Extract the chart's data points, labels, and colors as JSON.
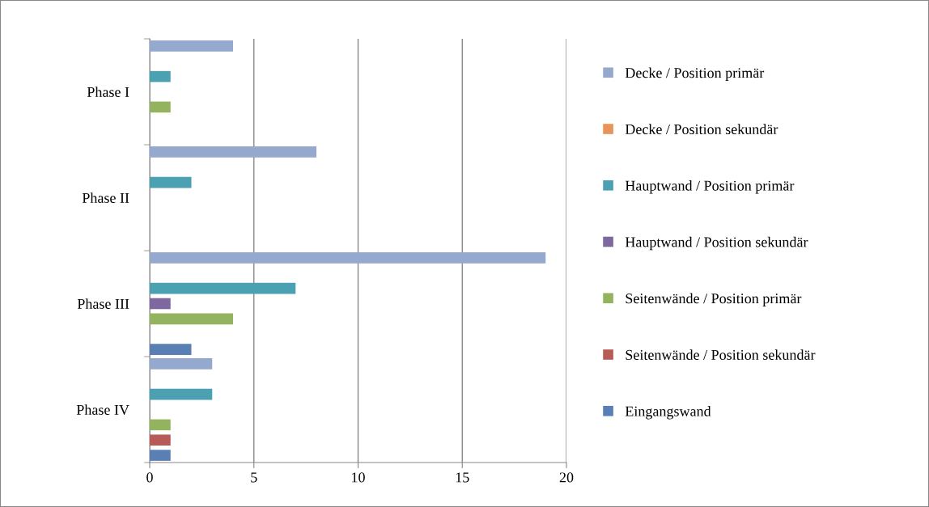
{
  "chart_data": {
    "type": "bar",
    "orientation": "horizontal",
    "categories": [
      "Phase I",
      "Phase II",
      "Phase III",
      "Phase IV"
    ],
    "series": [
      {
        "name": "Decke / Position primär",
        "color": "#95a9cf",
        "values": [
          4,
          8,
          19,
          3
        ]
      },
      {
        "name": "Decke / Position sekundär",
        "color": "#e8935a",
        "values": [
          0,
          0,
          0,
          0
        ]
      },
      {
        "name": "Hauptwand / Position primär",
        "color": "#4ba0b2",
        "values": [
          1,
          2,
          7,
          3
        ]
      },
      {
        "name": "Hauptwand / Position sekundär",
        "color": "#7f68a0",
        "values": [
          0,
          0,
          1,
          0
        ]
      },
      {
        "name": "Seitenwände / Position primär",
        "color": "#93b35f",
        "values": [
          1,
          0,
          4,
          1
        ]
      },
      {
        "name": "Seitenwände / Position sekundär",
        "color": "#b85a58",
        "values": [
          0,
          0,
          0,
          1
        ]
      },
      {
        "name": "Eingangswand",
        "color": "#5a7fb5",
        "values": [
          0,
          0,
          2,
          1
        ]
      }
    ],
    "xlim": [
      0,
      20
    ],
    "xticks": [
      0,
      5,
      10,
      15,
      20
    ],
    "grid": "x",
    "legend": "right"
  }
}
